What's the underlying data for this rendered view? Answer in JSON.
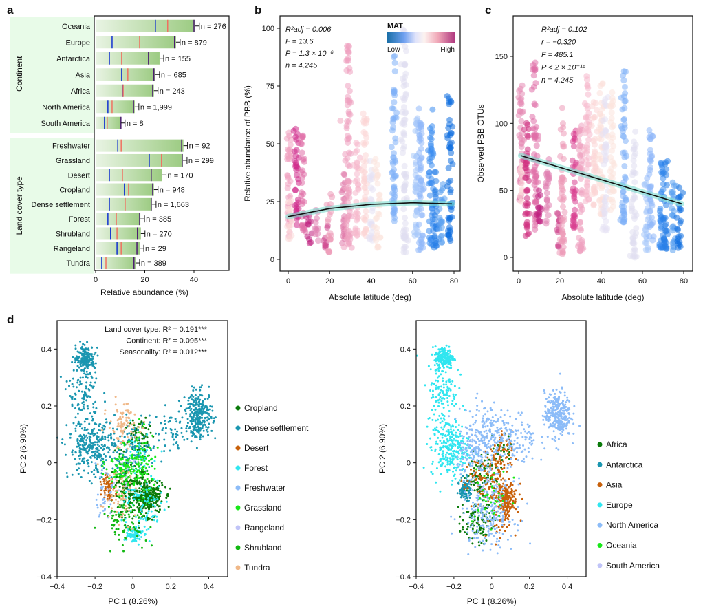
{
  "figure": {
    "panel_letters": [
      "a",
      "b",
      "c",
      "d"
    ]
  },
  "chart_data": [
    {
      "id": "a",
      "type": "bar",
      "orientation": "horizontal",
      "xlabel": "Relative abundance (%)",
      "xlim": [
        0,
        50
      ],
      "xticks": [
        0,
        20,
        40
      ],
      "marker_legend": {
        "blue": "median-like lower marker",
        "red": "mean-like marker",
        "purple": "upper marker"
      },
      "colors": {
        "bar_start": "#e8f3e2",
        "bar_end": "#9fcd85",
        "group_bg": "#e8fbe8",
        "blue": "#1030d0",
        "red": "#f07060",
        "purple": "#4a1a70"
      },
      "groups": [
        {
          "name": "Continent",
          "categories": [
            {
              "label": "Oceania",
              "value": 40.5,
              "blue": 24.3,
              "red": 29.3,
              "purple": 40.0,
              "n_label": "n = 276"
            },
            {
              "label": "Europe",
              "value": 32.7,
              "blue": 6.7,
              "red": 17.9,
              "purple": 32.1,
              "n_label": "n = 879"
            },
            {
              "label": "Antarctica",
              "value": 26.0,
              "blue": 5.6,
              "red": 10.6,
              "purple": 21.5,
              "n_label": "n = 155"
            },
            {
              "label": "Asia",
              "value": 24.3,
              "blue": 10.6,
              "red": 13.1,
              "purple": 23.7,
              "n_label": "n = 685"
            },
            {
              "label": "Africa",
              "value": 23.7,
              "blue": 10.9,
              "red": 11.2,
              "purple": 23.2,
              "n_label": "n = 243"
            },
            {
              "label": "North America",
              "value": 15.9,
              "blue": 5.0,
              "red": 6.7,
              "purple": 15.4,
              "n_label": "n = 1,999"
            },
            {
              "label": "South America",
              "value": 10.3,
              "blue": 3.6,
              "red": 4.7,
              "purple": 10.3,
              "n_label": "n = 8"
            }
          ]
        },
        {
          "name": "Land cover type",
          "categories": [
            {
              "label": "Freshwater",
              "value": 35.7,
              "blue": 9.0,
              "red": 10.4,
              "purple": 35.0,
              "n_label": "n = 92"
            },
            {
              "label": "Grassland",
              "value": 35.5,
              "blue": 21.8,
              "red": 26.8,
              "purple": 35.2,
              "n_label": "n = 299"
            },
            {
              "label": "Desert",
              "value": 27.0,
              "blue": 5.6,
              "red": 10.9,
              "purple": 22.6,
              "n_label": "n = 170"
            },
            {
              "label": "Cropland",
              "value": 23.7,
              "blue": 11.7,
              "red": 13.4,
              "purple": 23.2,
              "n_label": "n = 948"
            },
            {
              "label": "Dense settlement",
              "value": 22.9,
              "blue": 5.6,
              "red": 12.0,
              "purple": 22.6,
              "n_label": "n = 1,663"
            },
            {
              "label": "Forest",
              "value": 18.2,
              "blue": 5.0,
              "red": 8.4,
              "purple": 17.9,
              "n_label": "n = 385"
            },
            {
              "label": "Shrubland",
              "value": 18.4,
              "blue": 6.1,
              "red": 8.7,
              "purple": 17.0,
              "n_label": "n = 270"
            },
            {
              "label": "Rangeland",
              "value": 17.9,
              "blue": 8.7,
              "red": 10.4,
              "purple": 16.8,
              "n_label": "n = 29"
            },
            {
              "label": "Tundra",
              "value": 16.2,
              "blue": 2.5,
              "red": 4.2,
              "purple": 15.6,
              "n_label": "n = 389"
            }
          ]
        }
      ]
    },
    {
      "id": "b",
      "type": "scatter",
      "xlabel": "Absolute latitude (deg)",
      "ylabel": "Relative abundance of PBB (%)",
      "xlim": [
        -4,
        84
      ],
      "ylim": [
        -5,
        105
      ],
      "xticks": [
        0,
        20,
        40,
        60,
        80
      ],
      "yticks": [
        0,
        25,
        50,
        75,
        100
      ],
      "stats": [
        "R²adj = 0.006",
        "F = 13.6",
        "P = 1.3 × 10⁻⁶",
        "n = 4,245"
      ],
      "colorbar": {
        "title": "MAT",
        "low_label": "Low",
        "high_label": "High",
        "colors": [
          "#1a6fa8",
          "#6fa0f0",
          "#dfe3fb",
          "#fbeeee",
          "#f0a8b8",
          "#b03a80"
        ]
      },
      "fit": {
        "type": "quadratic",
        "x": [
          0,
          20,
          40,
          60,
          79
        ],
        "y": [
          18.5,
          22.0,
          23.8,
          24.5,
          24.0
        ],
        "line_color": "#111111",
        "ci_color": "#7fe0d0"
      },
      "columns": [
        {
          "x": 0.5,
          "ymin": 10,
          "ymax": 55,
          "color": "#f0a0c0"
        },
        {
          "x": 1,
          "ymin": 9,
          "ymax": 30,
          "color": "#fbd8d8"
        },
        {
          "x": 4,
          "ymin": 12,
          "ymax": 57,
          "color": "#d02a8a"
        },
        {
          "x": 7,
          "ymin": 12,
          "ymax": 54,
          "color": "#e070a8"
        },
        {
          "x": 10,
          "ymin": 7,
          "ymax": 20,
          "color": "#c02080"
        },
        {
          "x": 14,
          "ymin": 8,
          "ymax": 22,
          "color": "#e080b0"
        },
        {
          "x": 18,
          "ymin": 5,
          "ymax": 16,
          "color": "#d04a90"
        },
        {
          "x": 20,
          "ymin": 3,
          "ymax": 29,
          "color": "#ec9ab8"
        },
        {
          "x": 25,
          "ymin": 60,
          "ymax": 60,
          "color": "#f0a8c0"
        },
        {
          "x": 27,
          "ymin": 7,
          "ymax": 37,
          "color": "#e07aaa"
        },
        {
          "x": 29,
          "ymin": 5,
          "ymax": 100,
          "color": "#eea0c0"
        },
        {
          "x": 33,
          "ymin": 10,
          "ymax": 52,
          "color": "#f5b8cc"
        },
        {
          "x": 37,
          "ymin": 10,
          "ymax": 65,
          "color": "#fbd5d5"
        },
        {
          "x": 40,
          "ymin": 8,
          "ymax": 45,
          "color": "#e6e2f4"
        },
        {
          "x": 43,
          "ymin": 5,
          "ymax": 45,
          "color": "#fbe3dc"
        },
        {
          "x": 51,
          "ymin": 16,
          "ymax": 88,
          "color": "#80b0f8"
        },
        {
          "x": 56,
          "ymin": 3,
          "ymax": 100,
          "color": "#e0dff0"
        },
        {
          "x": 62,
          "ymin": 10,
          "ymax": 63,
          "color": "#a8c8fa"
        },
        {
          "x": 64,
          "ymin": 4,
          "ymax": 67,
          "color": "#90b8fa"
        },
        {
          "x": 69,
          "ymin": 6,
          "ymax": 65,
          "color": "#3a8cf0"
        },
        {
          "x": 71,
          "ymin": 5,
          "ymax": 40,
          "color": "#2880e8"
        },
        {
          "x": 74,
          "ymin": 7,
          "ymax": 33,
          "color": "#5aa0f0"
        },
        {
          "x": 78,
          "ymin": 8,
          "ymax": 71,
          "color": "#1070e0"
        }
      ]
    },
    {
      "id": "c",
      "type": "scatter",
      "xlabel": "Absolute latitude (deg)",
      "ylabel": "Observed PBB OTUs",
      "xlim": [
        -2,
        84
      ],
      "ylim": [
        -10,
        180
      ],
      "xticks": [
        0,
        20,
        40,
        60,
        80
      ],
      "yticks": [
        0,
        50,
        100,
        150
      ],
      "stats": [
        "R²adj = 0.102",
        "r = −0.320",
        "F = 485.1",
        "P < 2 × 10⁻¹⁶",
        "n = 4,245"
      ],
      "fit": {
        "type": "linear",
        "x": [
          1,
          79
        ],
        "y": [
          76,
          40
        ],
        "line_color": "#111111",
        "ci_color": "#7fe0d0"
      },
      "columns": [
        {
          "x": 1,
          "ymin": 40,
          "ymax": 131,
          "color": "#e58ab5"
        },
        {
          "x": 1.5,
          "ymin": 40,
          "ymax": 70,
          "color": "#fbd8d8"
        },
        {
          "x": 4,
          "ymin": 16,
          "ymax": 105,
          "color": "#d0307f"
        },
        {
          "x": 8,
          "ymin": 20,
          "ymax": 147,
          "color": "#e070a8"
        },
        {
          "x": 10,
          "ymin": 24,
          "ymax": 55,
          "color": "#c02080"
        },
        {
          "x": 14,
          "ymin": 25,
          "ymax": 75,
          "color": "#e080b0"
        },
        {
          "x": 19,
          "ymin": 8,
          "ymax": 35,
          "color": "#d04a90"
        },
        {
          "x": 21,
          "ymin": 2,
          "ymax": 112,
          "color": "#ec9ab8"
        },
        {
          "x": 27,
          "ymin": 22,
          "ymax": 100,
          "color": "#d8408f"
        },
        {
          "x": 30,
          "ymin": 1,
          "ymax": 100,
          "color": "#eea0c0"
        },
        {
          "x": 33,
          "ymin": 40,
          "ymax": 136,
          "color": "#f5b8cc"
        },
        {
          "x": 37,
          "ymin": 38,
          "ymax": 118,
          "color": "#fbd5d5"
        },
        {
          "x": 40,
          "ymin": 30,
          "ymax": 137,
          "color": "#fbe0da"
        },
        {
          "x": 42,
          "ymin": 20,
          "ymax": 120,
          "color": "#e6e2f4"
        },
        {
          "x": 45,
          "ymin": 35,
          "ymax": 124,
          "color": "#fbe3dc"
        },
        {
          "x": 51,
          "ymin": 26,
          "ymax": 139,
          "color": "#80b0f8"
        },
        {
          "x": 56,
          "ymin": 0,
          "ymax": 98,
          "color": "#e0dff0"
        },
        {
          "x": 62,
          "ymin": 5,
          "ymax": 58,
          "color": "#a8c8fa"
        },
        {
          "x": 64,
          "ymin": 12,
          "ymax": 96,
          "color": "#90b8fa"
        },
        {
          "x": 69,
          "ymin": 7,
          "ymax": 76,
          "color": "#3a8cf0"
        },
        {
          "x": 71,
          "ymin": 6,
          "ymax": 72,
          "color": "#2880e8"
        },
        {
          "x": 75,
          "ymin": 5,
          "ymax": 60,
          "color": "#5aa0f0"
        },
        {
          "x": 78,
          "ymin": 7,
          "ymax": 55,
          "color": "#1070e0"
        }
      ]
    },
    {
      "id": "d-left",
      "type": "scatter",
      "xlabel": "PC 1 (8.26%)",
      "ylabel": "PC 2 (6.90%)",
      "xlim": [
        -0.4,
        0.5
      ],
      "ylim": [
        -0.4,
        0.5
      ],
      "xticks": [
        -0.4,
        -0.2,
        0,
        0.2,
        0.4
      ],
      "xtick_labels": [
        "−0.4",
        "−0.2",
        "0",
        "0.2",
        "0.4"
      ],
      "yticks": [
        -0.4,
        -0.2,
        0,
        0.2,
        0.4
      ],
      "ytick_labels": [
        "−0.4",
        "−0.2",
        "0",
        "0.2",
        "0.4"
      ],
      "annotations": [
        "Land cover type: R² = 0.191***",
        "Continent: R² = 0.095***",
        "Seasonality: R² = 0.012***"
      ],
      "legend_position": "right",
      "series": [
        {
          "name": "Cropland",
          "color": "#0a7a0a",
          "clusters": [
            [
              0.08,
              -0.12,
              0.04,
              0.03,
              260
            ],
            [
              -0.02,
              -0.1,
              0.05,
              0.05,
              180
            ],
            [
              0.04,
              0.09,
              0.04,
              0.04,
              80
            ]
          ]
        },
        {
          "name": "Dense settlement",
          "color": "#1a96b0",
          "clusters": [
            [
              -0.25,
              0.37,
              0.025,
              0.02,
              160
            ],
            [
              -0.26,
              0.25,
              0.04,
              0.06,
              120
            ],
            [
              -0.22,
              0.05,
              0.06,
              0.05,
              280
            ],
            [
              0.35,
              0.17,
              0.035,
              0.04,
              260
            ],
            [
              0.2,
              0.1,
              0.06,
              0.04,
              60
            ],
            [
              -0.03,
              0.05,
              0.06,
              0.05,
              120
            ]
          ]
        },
        {
          "name": "Desert",
          "color": "#c8600a",
          "clusters": [
            [
              -0.13,
              -0.08,
              0.015,
              0.025,
              60
            ]
          ]
        },
        {
          "name": "Forest",
          "color": "#30e6f0",
          "clusters": [
            [
              0.0,
              -0.25,
              0.025,
              0.015,
              80
            ],
            [
              0.05,
              -0.15,
              0.06,
              0.05,
              90
            ],
            [
              0.05,
              0.03,
              0.04,
              0.04,
              40
            ]
          ]
        },
        {
          "name": "Freshwater",
          "color": "#8cbcf8",
          "clusters": [
            [
              -0.15,
              -0.13,
              0.02,
              0.04,
              40
            ]
          ]
        },
        {
          "name": "Grassland",
          "color": "#18e818",
          "clusters": [
            [
              -0.04,
              -0.02,
              0.05,
              0.04,
              120
            ],
            [
              0.05,
              0.0,
              0.04,
              0.06,
              60
            ]
          ]
        },
        {
          "name": "Rangeland",
          "color": "#c0c4f8",
          "clusters": [
            [
              -0.05,
              -0.05,
              0.05,
              0.05,
              15
            ]
          ]
        },
        {
          "name": "Shrubland",
          "color": "#12b812",
          "clusters": [
            [
              -0.04,
              -0.2,
              0.06,
              0.04,
              90
            ]
          ]
        },
        {
          "name": "Tundra",
          "color": "#f0b888",
          "clusters": [
            [
              -0.05,
              0.13,
              0.04,
              0.04,
              90
            ],
            [
              -0.08,
              -0.12,
              0.05,
              0.05,
              60
            ]
          ]
        }
      ]
    },
    {
      "id": "d-right",
      "type": "scatter",
      "xlabel": "PC 1 (8.26%)",
      "ylabel": "PC 2 (6.90%)",
      "xlim": [
        -0.4,
        0.5
      ],
      "ylim": [
        -0.4,
        0.5
      ],
      "xticks": [
        -0.4,
        -0.2,
        0,
        0.2,
        0.4
      ],
      "xtick_labels": [
        "−0.4",
        "−0.2",
        "0",
        "0.2",
        "0.4"
      ],
      "yticks": [
        -0.4,
        -0.2,
        0,
        0.2,
        0.4
      ],
      "ytick_labels": [
        "−0.4",
        "−0.2",
        "0",
        "0.2",
        "0.4"
      ],
      "legend_position": "right",
      "series": [
        {
          "name": "Africa",
          "color": "#0a7a0a",
          "clusters": [
            [
              -0.08,
              -0.2,
              0.04,
              0.04,
              110
            ],
            [
              -0.05,
              -0.05,
              0.04,
              0.04,
              80
            ],
            [
              0.05,
              0.05,
              0.03,
              0.03,
              30
            ]
          ]
        },
        {
          "name": "Antarctica",
          "color": "#1a96b0",
          "clusters": [
            [
              -0.14,
              -0.09,
              0.015,
              0.025,
              80
            ]
          ]
        },
        {
          "name": "Asia",
          "color": "#c8600a",
          "clusters": [
            [
              0.08,
              -0.13,
              0.025,
              0.025,
              200
            ],
            [
              -0.02,
              -0.06,
              0.06,
              0.05,
              140
            ],
            [
              0.05,
              0.03,
              0.03,
              0.04,
              50
            ],
            [
              0.05,
              -0.2,
              0.05,
              0.04,
              40
            ]
          ]
        },
        {
          "name": "Europe",
          "color": "#30e6f0",
          "clusters": [
            [
              -0.25,
              0.37,
              0.025,
              0.02,
              170
            ],
            [
              -0.26,
              0.25,
              0.04,
              0.06,
              120
            ],
            [
              -0.22,
              0.05,
              0.05,
              0.05,
              260
            ]
          ]
        },
        {
          "name": "North America",
          "color": "#8cbcf8",
          "clusters": [
            [
              0.35,
              0.17,
              0.035,
              0.04,
              300
            ],
            [
              -0.05,
              0.12,
              0.06,
              0.05,
              120
            ],
            [
              0.1,
              0.08,
              0.07,
              0.05,
              160
            ],
            [
              -0.08,
              0.03,
              0.05,
              0.04,
              120
            ],
            [
              -0.02,
              -0.18,
              0.07,
              0.06,
              220
            ]
          ]
        },
        {
          "name": "Oceania",
          "color": "#18e818",
          "clusters": [
            [
              0.0,
              -0.12,
              0.05,
              0.05,
              40
            ]
          ]
        },
        {
          "name": "South America",
          "color": "#c0c4f8",
          "clusters": [
            [
              0.0,
              -0.1,
              0.04,
              0.04,
              10
            ]
          ]
        }
      ]
    }
  ]
}
